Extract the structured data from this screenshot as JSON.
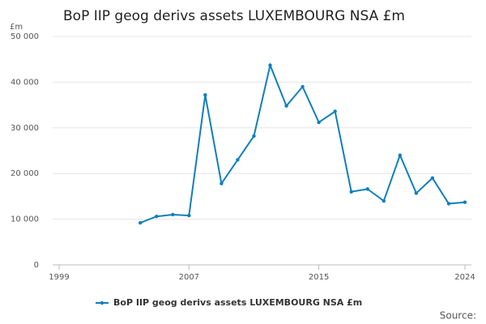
{
  "chart_data": {
    "type": "line",
    "title": "BoP IIP geog derivs assets LUXEMBOURG NSA £m",
    "y_unit": "£m",
    "source": "Source:",
    "x": [
      2004,
      2005,
      2006,
      2007,
      2008,
      2009,
      2010,
      2011,
      2012,
      2013,
      2014,
      2015,
      2016,
      2017,
      2018,
      2019,
      2020,
      2021,
      2022,
      2023,
      2024
    ],
    "series": [
      {
        "name": "BoP IIP geog derivs assets LUXEMBOURG NSA £m",
        "color": "#0f7fbd",
        "values": [
          9200,
          10600,
          11000,
          10800,
          37200,
          17800,
          23000,
          28200,
          43700,
          34800,
          39000,
          31200,
          33600,
          16000,
          16600,
          14000,
          24000,
          15700,
          19000,
          13400,
          13700
        ]
      }
    ],
    "xlim": [
      1998.6,
      2024.4
    ],
    "xticks": [
      1999,
      2007,
      2015,
      2024
    ],
    "ylim": [
      0,
      50000
    ],
    "yticks": [
      0,
      {
        "value": 10000,
        "label": "10 000"
      },
      {
        "value": 20000,
        "label": "20 000"
      },
      {
        "value": 30000,
        "label": "30 000"
      },
      {
        "value": 40000,
        "label": "40 000"
      },
      {
        "value": 50000,
        "label": "50 000"
      }
    ],
    "grid": true
  }
}
